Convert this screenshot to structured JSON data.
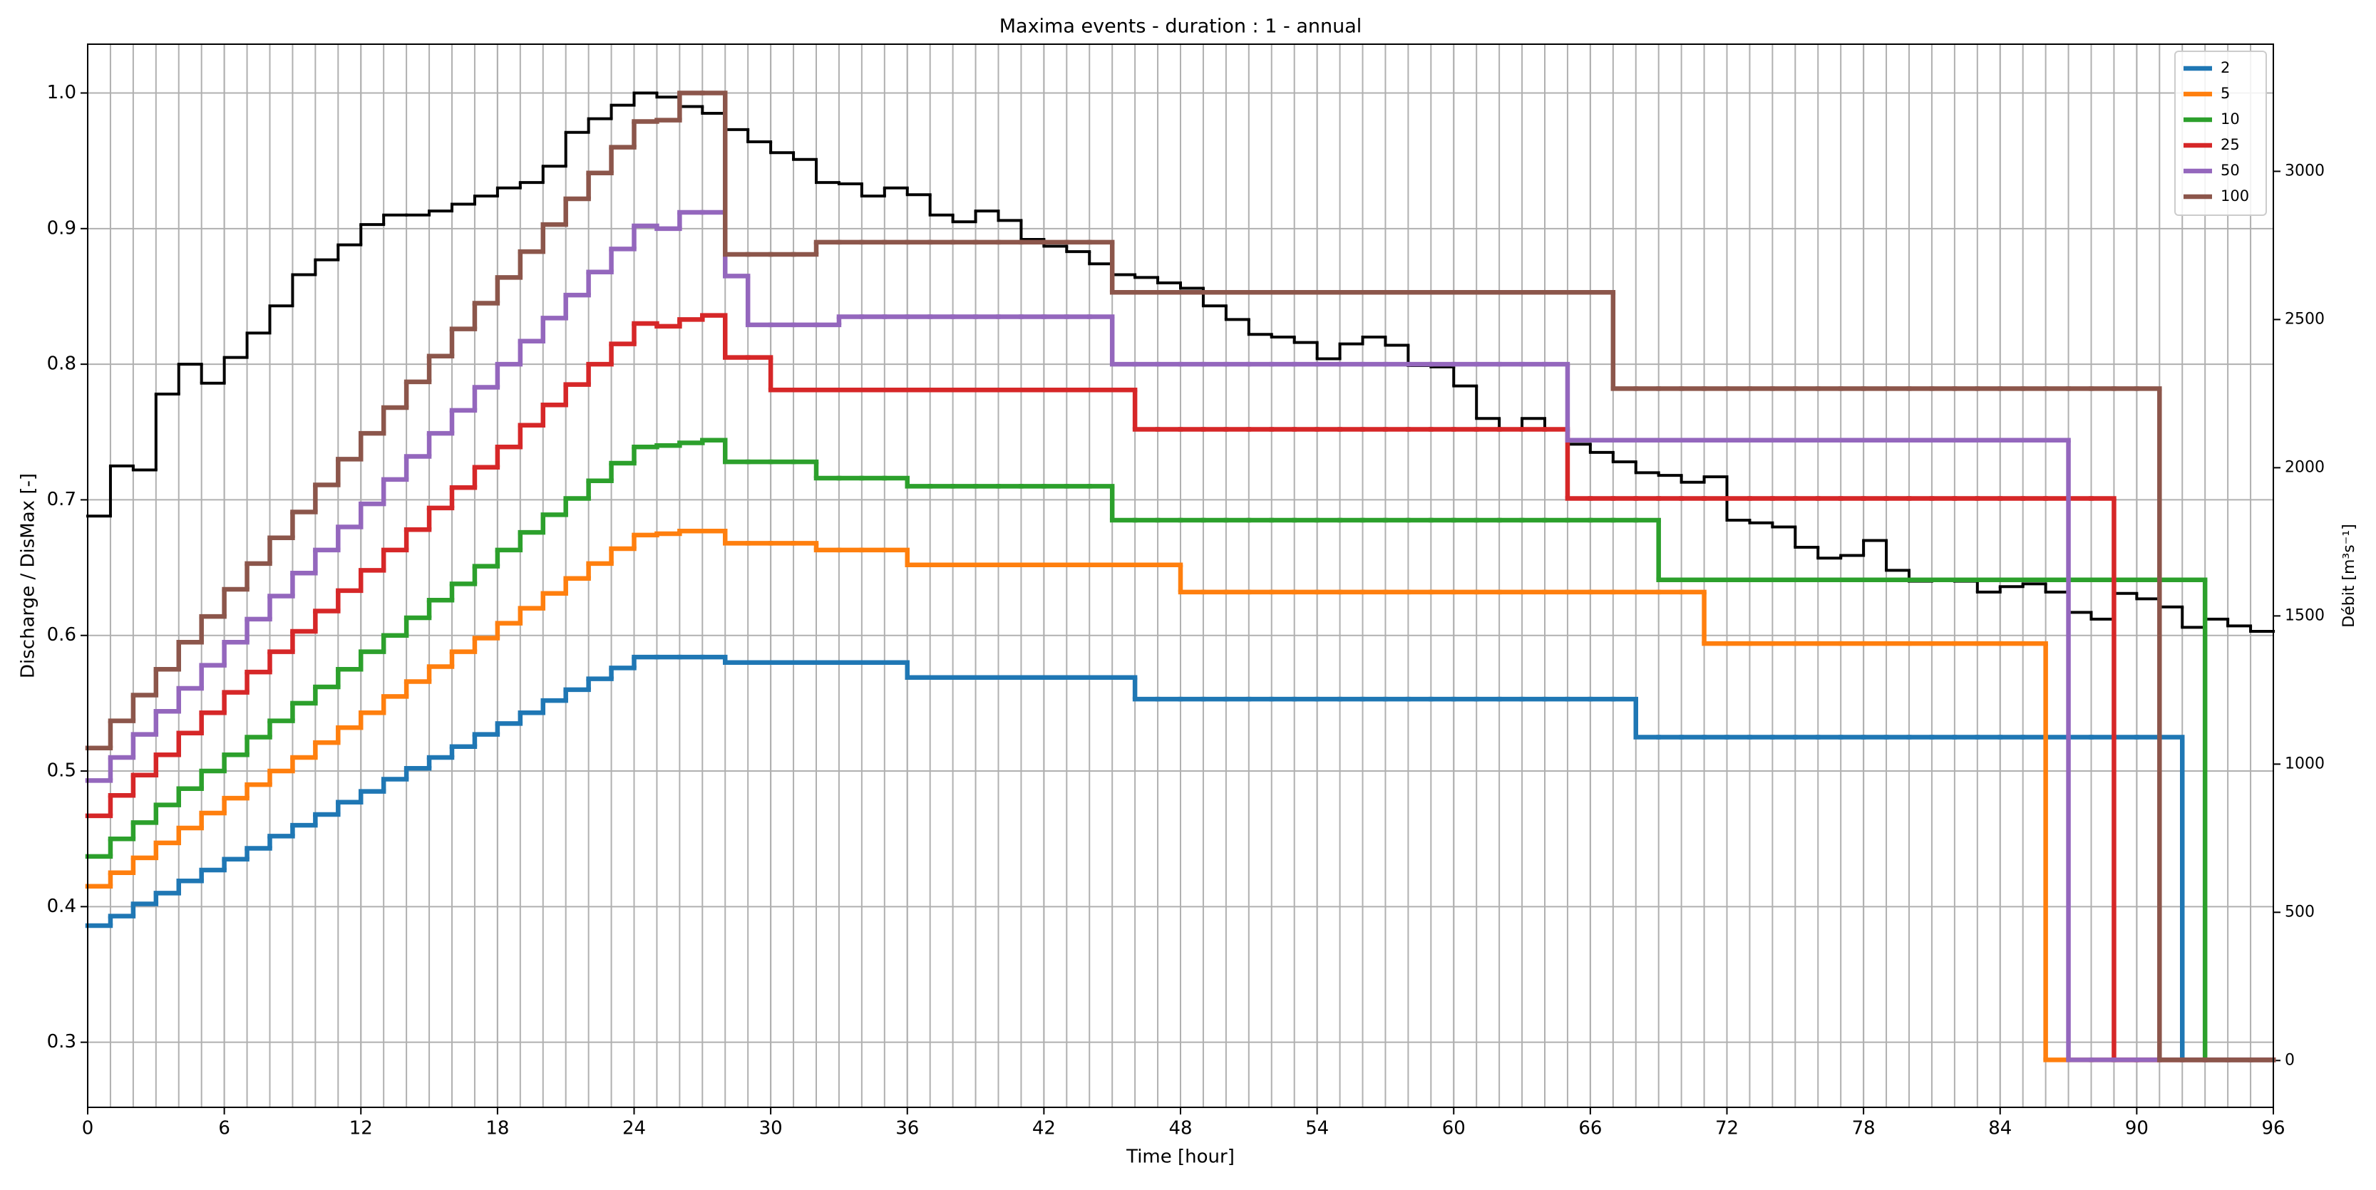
{
  "chart_data": {
    "type": "step",
    "title": "Maxima events - duration : 1 - annual",
    "xlabel": "Time [hour]",
    "ylabel": "Discharge / DisMax [-]",
    "y2label": "Débit [m³s⁻¹]",
    "xlim": [
      0,
      96
    ],
    "xticks": [
      0,
      6,
      12,
      18,
      24,
      30,
      36,
      42,
      48,
      54,
      60,
      66,
      72,
      78,
      84,
      90,
      96
    ],
    "ylim": [
      0.252,
      1.036
    ],
    "yticks": [
      0.3,
      0.4,
      0.5,
      0.6,
      0.7,
      0.8,
      0.9,
      {
        "value": 1,
        "label": "1.0"
      }
    ],
    "y2lim": [
      -158,
      3429
    ],
    "y2ticks": [
      0,
      500,
      1000,
      1500,
      2000,
      2500,
      3000
    ],
    "grid": true,
    "legend": "upper right",
    "x": [
      0,
      1,
      2,
      3,
      4,
      5,
      6,
      7,
      8,
      9,
      10,
      11,
      12,
      13,
      14,
      15,
      16,
      17,
      18,
      19,
      20,
      21,
      22,
      23,
      24,
      25,
      26,
      27,
      28,
      29,
      30,
      31,
      32,
      33,
      34,
      35,
      36,
      37,
      38,
      39,
      40,
      41,
      42,
      43,
      44,
      45,
      46,
      47,
      48,
      49,
      50,
      51,
      52,
      53,
      54,
      55,
      56,
      57,
      58,
      59,
      60,
      61,
      62,
      63,
      64,
      65,
      66,
      67,
      68,
      69,
      70,
      71,
      72,
      73,
      74,
      75,
      76,
      77,
      78,
      79,
      80,
      81,
      82,
      83,
      84,
      85,
      86,
      87,
      88,
      89,
      90,
      91,
      92,
      93,
      94,
      95
    ],
    "series": [
      {
        "color": "#000000",
        "values": [
          0.688,
          0.725,
          0.722,
          0.778,
          0.8,
          0.786,
          0.805,
          0.823,
          0.843,
          0.866,
          0.877,
          0.888,
          0.903,
          0.91,
          0.91,
          0.913,
          0.918,
          0.924,
          0.93,
          0.934,
          0.946,
          0.971,
          0.981,
          0.991,
          1.0,
          0.997,
          0.99,
          0.985,
          0.973,
          0.964,
          0.956,
          0.951,
          0.934,
          0.933,
          0.924,
          0.93,
          0.925,
          0.91,
          0.905,
          0.913,
          0.906,
          0.892,
          0.887,
          0.883,
          0.874,
          0.866,
          0.864,
          0.86,
          0.856,
          0.843,
          0.833,
          0.822,
          0.82,
          0.816,
          0.804,
          0.815,
          0.82,
          0.814,
          0.799,
          0.798,
          0.784,
          0.76,
          0.752,
          0.76,
          0.752,
          0.741,
          0.735,
          0.728,
          0.72,
          0.718,
          0.713,
          0.717,
          0.685,
          0.683,
          0.68,
          0.665,
          0.657,
          0.659,
          0.67,
          0.648,
          0.64,
          0.641,
          0.64,
          0.632,
          0.636,
          0.638,
          0.632,
          0.617,
          0.612,
          0.631,
          0.627,
          0.621,
          0.606,
          0.612,
          0.607,
          0.603
        ]
      },
      {
        "name": "2",
        "color": "#1f77b4",
        "values": [
          0.386,
          0.393,
          0.402,
          0.41,
          0.419,
          0.427,
          0.435,
          0.443,
          0.452,
          0.46,
          0.468,
          0.477,
          0.485,
          0.494,
          0.502,
          0.51,
          0.518,
          0.527,
          0.535,
          0.543,
          0.552,
          0.56,
          0.568,
          0.576,
          0.584,
          0.584,
          0.584,
          0.584,
          0.58,
          0.58,
          0.58,
          0.58,
          0.58,
          0.58,
          0.58,
          0.58,
          0.569,
          0.569,
          0.569,
          0.569,
          0.569,
          0.569,
          0.569,
          0.569,
          0.569,
          0.569,
          0.553,
          0.553,
          0.553,
          0.553,
          0.553,
          0.553,
          0.553,
          0.553,
          0.553,
          0.553,
          0.553,
          0.553,
          0.553,
          0.553,
          0.553,
          0.553,
          0.553,
          0.553,
          0.553,
          0.553,
          0.553,
          0.553,
          0.525,
          0.525,
          0.525,
          0.525,
          0.525,
          0.525,
          0.525,
          0.525,
          0.525,
          0.525,
          0.525,
          0.525,
          0.525,
          0.525,
          0.525,
          0.525,
          0.525,
          0.525,
          0.525,
          0.525,
          0.525,
          0.525,
          0.525,
          0.525,
          0.287,
          0.287,
          0.287,
          0.287
        ]
      },
      {
        "name": "5",
        "color": "#ff7f0e",
        "values": [
          0.415,
          0.425,
          0.436,
          0.447,
          0.458,
          0.469,
          0.48,
          0.49,
          0.5,
          0.51,
          0.521,
          0.532,
          0.543,
          0.555,
          0.566,
          0.577,
          0.588,
          0.598,
          0.609,
          0.62,
          0.631,
          0.642,
          0.653,
          0.664,
          0.674,
          0.675,
          0.677,
          0.677,
          0.668,
          0.668,
          0.668,
          0.668,
          0.663,
          0.663,
          0.663,
          0.663,
          0.652,
          0.652,
          0.652,
          0.652,
          0.652,
          0.652,
          0.652,
          0.652,
          0.652,
          0.652,
          0.652,
          0.652,
          0.632,
          0.632,
          0.632,
          0.632,
          0.632,
          0.632,
          0.632,
          0.632,
          0.632,
          0.632,
          0.632,
          0.632,
          0.632,
          0.632,
          0.632,
          0.632,
          0.632,
          0.632,
          0.632,
          0.632,
          0.632,
          0.632,
          0.632,
          0.594,
          0.594,
          0.594,
          0.594,
          0.594,
          0.594,
          0.594,
          0.594,
          0.594,
          0.594,
          0.594,
          0.594,
          0.594,
          0.594,
          0.594,
          0.287,
          0.287,
          0.287,
          0.287,
          0.287,
          0.287,
          0.287,
          0.287,
          0.287,
          0.287
        ]
      },
      {
        "name": "10",
        "color": "#2ca02c",
        "values": [
          0.437,
          0.45,
          0.462,
          0.475,
          0.487,
          0.5,
          0.512,
          0.525,
          0.537,
          0.55,
          0.562,
          0.575,
          0.588,
          0.6,
          0.613,
          0.626,
          0.638,
          0.651,
          0.663,
          0.676,
          0.689,
          0.701,
          0.714,
          0.727,
          0.739,
          0.74,
          0.742,
          0.744,
          0.728,
          0.728,
          0.728,
          0.728,
          0.716,
          0.716,
          0.716,
          0.716,
          0.71,
          0.71,
          0.71,
          0.71,
          0.71,
          0.71,
          0.71,
          0.71,
          0.71,
          0.685,
          0.685,
          0.685,
          0.685,
          0.685,
          0.685,
          0.685,
          0.685,
          0.685,
          0.685,
          0.685,
          0.685,
          0.685,
          0.685,
          0.685,
          0.685,
          0.685,
          0.685,
          0.685,
          0.685,
          0.685,
          0.685,
          0.685,
          0.685,
          0.641,
          0.641,
          0.641,
          0.641,
          0.641,
          0.641,
          0.641,
          0.641,
          0.641,
          0.641,
          0.641,
          0.641,
          0.641,
          0.641,
          0.641,
          0.641,
          0.641,
          0.641,
          0.641,
          0.641,
          0.641,
          0.641,
          0.641,
          0.641,
          0.287,
          0.287,
          0.287
        ]
      },
      {
        "name": "25",
        "color": "#d62728",
        "values": [
          0.467,
          0.482,
          0.497,
          0.512,
          0.528,
          0.543,
          0.558,
          0.573,
          0.588,
          0.603,
          0.618,
          0.633,
          0.648,
          0.663,
          0.678,
          0.694,
          0.709,
          0.724,
          0.739,
          0.755,
          0.77,
          0.785,
          0.8,
          0.815,
          0.83,
          0.828,
          0.833,
          0.836,
          0.805,
          0.805,
          0.781,
          0.781,
          0.781,
          0.781,
          0.781,
          0.781,
          0.781,
          0.781,
          0.781,
          0.781,
          0.781,
          0.781,
          0.781,
          0.781,
          0.781,
          0.781,
          0.752,
          0.752,
          0.752,
          0.752,
          0.752,
          0.752,
          0.752,
          0.752,
          0.752,
          0.752,
          0.752,
          0.752,
          0.752,
          0.752,
          0.752,
          0.752,
          0.752,
          0.752,
          0.752,
          0.701,
          0.701,
          0.701,
          0.701,
          0.701,
          0.701,
          0.701,
          0.701,
          0.701,
          0.701,
          0.701,
          0.701,
          0.701,
          0.701,
          0.701,
          0.701,
          0.701,
          0.701,
          0.701,
          0.701,
          0.701,
          0.701,
          0.701,
          0.701,
          0.287,
          0.287,
          0.287,
          0.287,
          0.287,
          0.287,
          0.287
        ]
      },
      {
        "name": "50",
        "color": "#9467bd",
        "values": [
          0.493,
          0.51,
          0.527,
          0.544,
          0.561,
          0.578,
          0.595,
          0.612,
          0.629,
          0.646,
          0.663,
          0.68,
          0.697,
          0.715,
          0.732,
          0.749,
          0.766,
          0.783,
          0.8,
          0.817,
          0.834,
          0.851,
          0.868,
          0.885,
          0.902,
          0.9,
          0.912,
          0.912,
          0.865,
          0.829,
          0.829,
          0.829,
          0.829,
          0.835,
          0.835,
          0.835,
          0.835,
          0.835,
          0.835,
          0.835,
          0.835,
          0.835,
          0.835,
          0.835,
          0.835,
          0.8,
          0.8,
          0.8,
          0.8,
          0.8,
          0.8,
          0.8,
          0.8,
          0.8,
          0.8,
          0.8,
          0.8,
          0.8,
          0.8,
          0.8,
          0.8,
          0.8,
          0.8,
          0.8,
          0.8,
          0.744,
          0.744,
          0.744,
          0.744,
          0.744,
          0.744,
          0.744,
          0.744,
          0.744,
          0.744,
          0.744,
          0.744,
          0.744,
          0.744,
          0.744,
          0.744,
          0.744,
          0.744,
          0.744,
          0.744,
          0.744,
          0.744,
          0.287,
          0.287,
          0.287,
          0.287,
          0.287,
          0.287,
          0.287,
          0.287,
          0.287
        ]
      },
      {
        "name": "100",
        "color": "#8c564b",
        "values": [
          0.517,
          0.537,
          0.556,
          0.575,
          0.595,
          0.614,
          0.634,
          0.653,
          0.672,
          0.691,
          0.711,
          0.73,
          0.749,
          0.768,
          0.787,
          0.806,
          0.826,
          0.845,
          0.864,
          0.883,
          0.903,
          0.922,
          0.941,
          0.96,
          0.979,
          0.98,
          1.0,
          1.0,
          0.881,
          0.881,
          0.881,
          0.881,
          0.89,
          0.89,
          0.89,
          0.89,
          0.89,
          0.89,
          0.89,
          0.89,
          0.89,
          0.89,
          0.89,
          0.89,
          0.89,
          0.853,
          0.853,
          0.853,
          0.853,
          0.853,
          0.853,
          0.853,
          0.853,
          0.853,
          0.853,
          0.853,
          0.853,
          0.853,
          0.853,
          0.853,
          0.853,
          0.853,
          0.853,
          0.853,
          0.853,
          0.853,
          0.853,
          0.782,
          0.782,
          0.782,
          0.782,
          0.782,
          0.782,
          0.782,
          0.782,
          0.782,
          0.782,
          0.782,
          0.782,
          0.782,
          0.782,
          0.782,
          0.782,
          0.782,
          0.782,
          0.782,
          0.782,
          0.782,
          0.782,
          0.782,
          0.782,
          0.287,
          0.287,
          0.287,
          0.287,
          0.287
        ]
      }
    ]
  }
}
